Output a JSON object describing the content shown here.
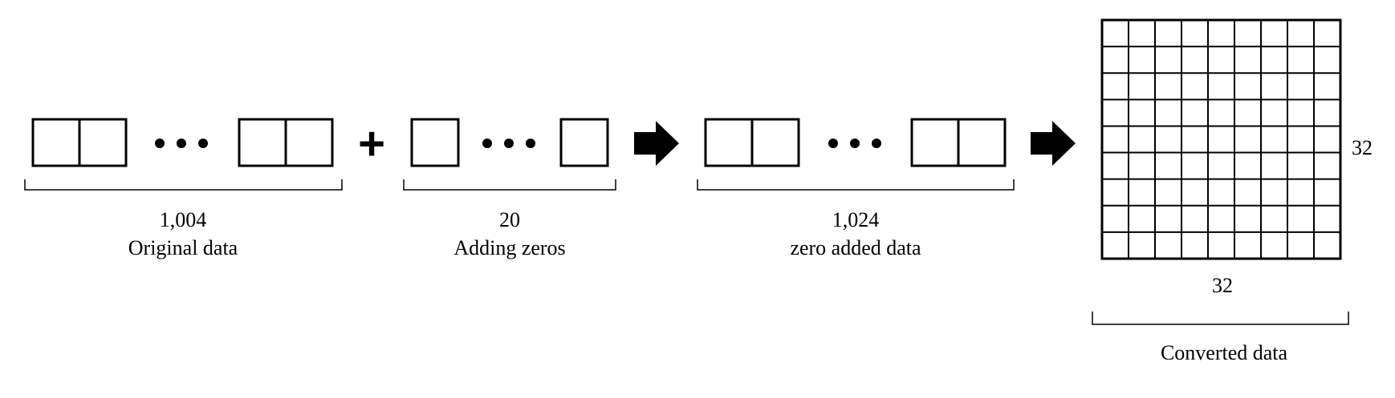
{
  "segments": [
    {
      "count": "1,004",
      "label": "Original data"
    },
    {
      "count": "20",
      "label": "Adding zeros"
    },
    {
      "count": "1,024",
      "label": "zero added data"
    }
  ],
  "grid": {
    "width_label": "32",
    "height_label": "32",
    "label": "Converted data"
  },
  "operators": {
    "plus": "+"
  },
  "icons": {
    "ellipsis": "ellipsis-icon",
    "arrow": "right-arrow-icon"
  },
  "colors": {
    "stroke": "#000000",
    "background": "#ffffff"
  }
}
